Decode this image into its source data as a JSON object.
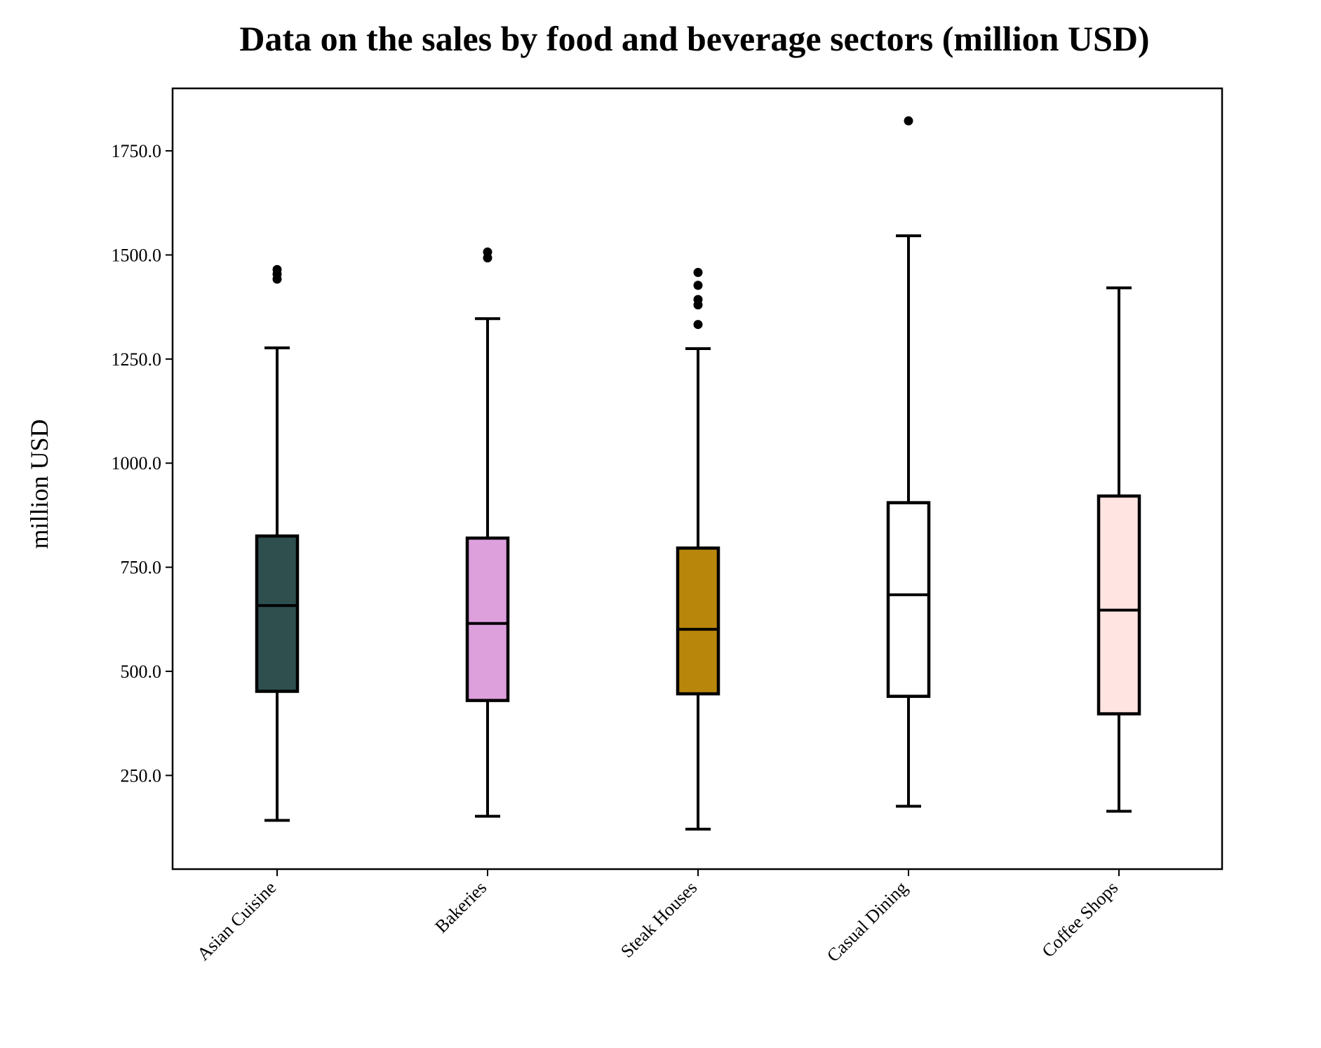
{
  "chart_data": {
    "type": "box",
    "title": "Data on the sales by food and beverage sectors (million USD)",
    "xlabel": "",
    "ylabel": "million USD",
    "ylim": [
      25,
      1900
    ],
    "yticks": [
      250,
      500,
      750,
      1000,
      1250,
      1500,
      1750
    ],
    "ytick_labels": [
      "250.0",
      "500.0",
      "750.0",
      "1000.0",
      "1250.0",
      "1500.0",
      "1750.0"
    ],
    "grid": false,
    "categories": [
      "Asian Cuisine",
      "Bakeries",
      "Steak Houses",
      "Casual Dining",
      "Coffee Shops"
    ],
    "boxes": [
      {
        "name": "Asian Cuisine",
        "whisker_low": 142,
        "q1": 452,
        "median": 658,
        "q3": 825,
        "whisker_high": 1277,
        "outliers": [
          1442,
          1454,
          1465
        ],
        "color": "#2f4f4f"
      },
      {
        "name": "Bakeries",
        "whisker_low": 152,
        "q1": 430,
        "median": 615,
        "q3": 820,
        "whisker_high": 1347,
        "outliers": [
          1493,
          1507
        ],
        "color": "#dda0dd"
      },
      {
        "name": "Steak Houses",
        "whisker_low": 121,
        "q1": 446,
        "median": 601,
        "q3": 796,
        "whisker_high": 1275,
        "outliers": [
          1333,
          1380,
          1393,
          1427,
          1458
        ],
        "color": "#b8860b"
      },
      {
        "name": "Casual Dining",
        "whisker_low": 176,
        "q1": 440,
        "median": 684,
        "q3": 905,
        "whisker_high": 1546,
        "outliers": [
          1822
        ],
        "color": "#ffffff"
      },
      {
        "name": "Coffee Shops",
        "whisker_low": 164,
        "q1": 398,
        "median": 647,
        "q3": 921,
        "whisker_high": 1421,
        "outliers": [],
        "color": "#ffe4e1"
      }
    ]
  }
}
